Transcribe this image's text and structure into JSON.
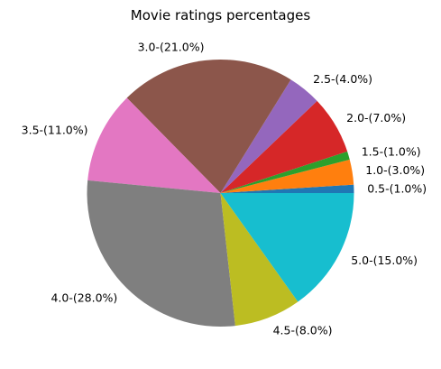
{
  "chart_data": {
    "type": "pie",
    "title": "Movie ratings percentages",
    "start_angle_deg": 0,
    "direction": "counterclockwise",
    "slices": [
      {
        "label": "0.5-(1.0%)",
        "value": 1.0,
        "color": "#1f77b4"
      },
      {
        "label": "1.0-(3.0%)",
        "value": 3.0,
        "color": "#ff7f0e"
      },
      {
        "label": "1.5-(1.0%)",
        "value": 1.0,
        "color": "#2ca02c"
      },
      {
        "label": "2.0-(7.0%)",
        "value": 7.0,
        "color": "#d62728"
      },
      {
        "label": "2.5-(4.0%)",
        "value": 4.0,
        "color": "#9467bd"
      },
      {
        "label": "3.0-(21.0%)",
        "value": 21.0,
        "color": "#8c564b"
      },
      {
        "label": "3.5-(11.0%)",
        "value": 11.0,
        "color": "#e377c2"
      },
      {
        "label": "4.0-(28.0%)",
        "value": 28.0,
        "color": "#7f7f7f"
      },
      {
        "label": "4.5-(8.0%)",
        "value": 8.0,
        "color": "#bcbd22"
      },
      {
        "label": "5.0-(15.0%)",
        "value": 15.0,
        "color": "#17becf"
      }
    ]
  }
}
